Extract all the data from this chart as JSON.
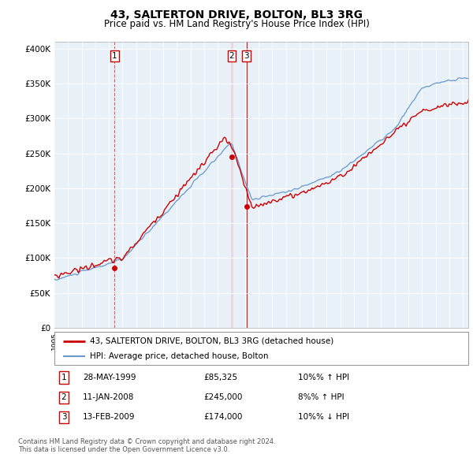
{
  "title": "43, SALTERTON DRIVE, BOLTON, BL3 3RG",
  "subtitle": "Price paid vs. HM Land Registry's House Price Index (HPI)",
  "title_fontsize": 10,
  "subtitle_fontsize": 8.5,
  "ylabel_ticks": [
    "£0",
    "£50K",
    "£100K",
    "£150K",
    "£200K",
    "£250K",
    "£300K",
    "£350K",
    "£400K"
  ],
  "ytick_values": [
    0,
    50000,
    100000,
    150000,
    200000,
    250000,
    300000,
    350000,
    400000
  ],
  "ylim": [
    0,
    410000
  ],
  "xlim_start": 1995.0,
  "xlim_end": 2025.4,
  "price_paid_color": "#cc0000",
  "hpi_color": "#6699cc",
  "hpi_fill_color": "#ddeeff",
  "plot_bg_color": "#e8f0f8",
  "vline_color_dashed": "#dd4444",
  "vline_color_solid": "#cc0000",
  "marker_color": "#cc0000",
  "transactions": [
    {
      "label": "1",
      "year": 1999.41,
      "price": 85325,
      "date": "28-MAY-1999",
      "hpi_pct": "10%",
      "hpi_dir": "↑",
      "vline_style": "dashed"
    },
    {
      "label": "2",
      "year": 2008.03,
      "price": 245000,
      "date": "11-JAN-2008",
      "hpi_pct": "8%",
      "hpi_dir": "↑",
      "vline_style": "solid"
    },
    {
      "label": "3",
      "year": 2009.12,
      "price": 174000,
      "date": "13-FEB-2009",
      "hpi_pct": "10%",
      "hpi_dir": "↓",
      "vline_style": "solid"
    }
  ],
  "legend_entries": [
    "43, SALTERTON DRIVE, BOLTON, BL3 3RG (detached house)",
    "HPI: Average price, detached house, Bolton"
  ],
  "footer_lines": [
    "Contains HM Land Registry data © Crown copyright and database right 2024.",
    "This data is licensed under the Open Government Licence v3.0."
  ]
}
